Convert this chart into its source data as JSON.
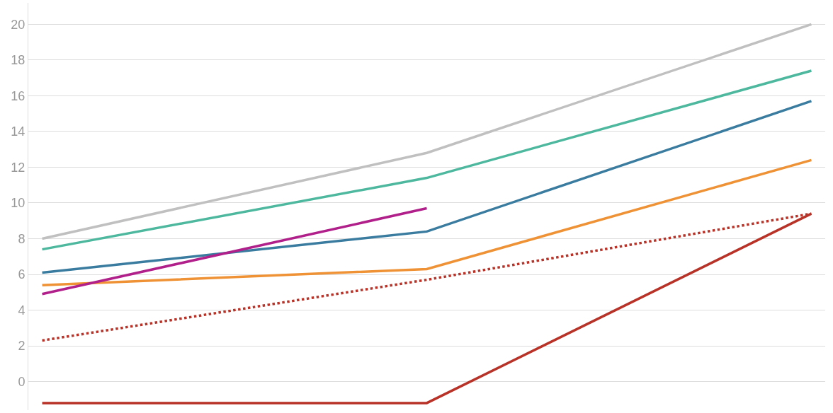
{
  "chart_data": {
    "type": "line",
    "categories": [
      null,
      null,
      null
    ],
    "series": [
      {
        "color": "#c0c0c0",
        "values": [
          8.0,
          12.8,
          20.0
        ]
      },
      {
        "color": "#4db89e",
        "values": [
          7.4,
          11.4,
          17.4
        ]
      },
      {
        "color": "#3a7ca0",
        "values": [
          6.1,
          8.4,
          15.7
        ]
      },
      {
        "color": "#ee9235",
        "values": [
          5.4,
          6.3,
          12.4
        ]
      },
      {
        "color": "#b01f8a",
        "values": [
          4.9,
          9.7,
          null
        ]
      },
      {
        "color": "#b83228",
        "values": [
          2.3,
          5.7,
          9.4
        ],
        "line_style": "dotted"
      },
      {
        "color": "#b83228",
        "values": [
          -1.2,
          -1.2,
          9.4
        ]
      }
    ],
    "ylim": [
      -1.6,
      21.2
    ],
    "yticks": [
      0,
      2,
      4,
      6,
      8,
      10,
      12,
      14,
      16,
      18,
      20
    ],
    "grid": "y",
    "marker": "none",
    "line_style": "solid",
    "tick_labels": "y"
  }
}
